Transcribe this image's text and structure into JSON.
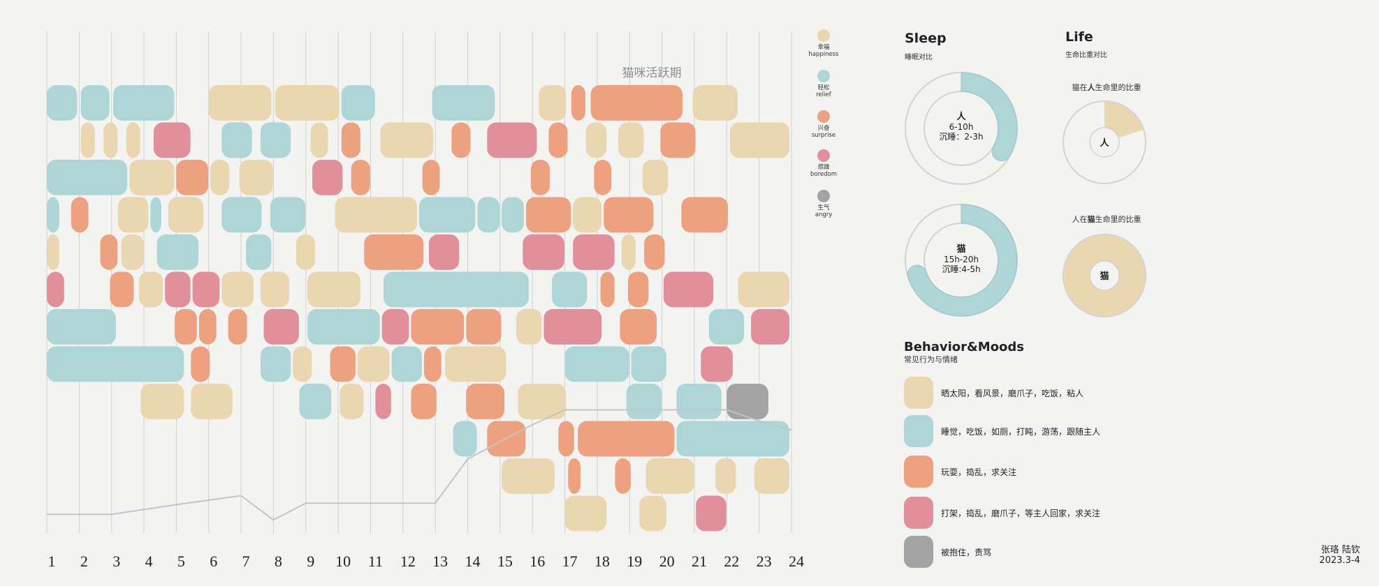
{
  "chart_data": {
    "type": "timeline-blocks",
    "title": "猫咪活跃期",
    "hours": [
      "1",
      "2",
      "3",
      "4",
      "5",
      "6",
      "7",
      "8",
      "9",
      "10",
      "11",
      "12",
      "13",
      "14",
      "15",
      "16",
      "17",
      "18",
      "19",
      "20",
      "21",
      "22",
      "23",
      "24"
    ],
    "activity_curve": [
      [
        1,
        0.5
      ],
      [
        2,
        0.5
      ],
      [
        3,
        0.5
      ],
      [
        4,
        0.63
      ],
      [
        5,
        0.76
      ],
      [
        6,
        0.88
      ],
      [
        7,
        1.0
      ],
      [
        8,
        0.35
      ],
      [
        9,
        0.8
      ],
      [
        10,
        0.8
      ],
      [
        11,
        0.8
      ],
      [
        12,
        0.8
      ],
      [
        13,
        0.8
      ],
      [
        14,
        1.98
      ],
      [
        15,
        2.45
      ],
      [
        16,
        2.9
      ],
      [
        17,
        3.3
      ],
      [
        18,
        3.3
      ],
      [
        19,
        3.3
      ],
      [
        20,
        3.3
      ],
      [
        21,
        3.3
      ],
      [
        22,
        3.3
      ],
      [
        23,
        3.0
      ],
      [
        24,
        2.76
      ]
    ],
    "colors": {
      "happiness": "#ead6b0",
      "relief": "#afd6d7",
      "surprise": "#eea181",
      "boredom": "#e18f9b",
      "angry": "#a3a3a3"
    },
    "blocks": [
      [
        1,
        2,
        11.05,
        12,
        "relief"
      ],
      [
        2.05,
        3,
        11.05,
        12,
        "relief"
      ],
      [
        3.05,
        5,
        11.05,
        12,
        "relief"
      ],
      [
        6,
        8,
        11.05,
        12,
        "happiness"
      ],
      [
        8.05,
        10.1,
        11.05,
        12,
        "happiness"
      ],
      [
        10.1,
        11.2,
        11.05,
        12,
        "relief"
      ],
      [
        12.9,
        14.9,
        11.05,
        12,
        "relief"
      ],
      [
        16.2,
        17.1,
        11.05,
        12,
        "happiness"
      ],
      [
        17.2,
        17.7,
        11.05,
        12,
        "surprise"
      ],
      [
        17.8,
        20.7,
        11.05,
        12,
        "surprise"
      ],
      [
        20.95,
        22.4,
        11.05,
        12,
        "happiness"
      ],
      [
        2.05,
        2.55,
        10.05,
        11,
        "happiness"
      ],
      [
        2.75,
        3.25,
        10.05,
        11,
        "happiness"
      ],
      [
        3.45,
        3.95,
        10.05,
        11,
        "happiness"
      ],
      [
        4.3,
        5.5,
        10.05,
        11,
        "boredom"
      ],
      [
        6.4,
        7.4,
        10.05,
        11,
        "relief"
      ],
      [
        7.6,
        8.6,
        10.05,
        11,
        "relief"
      ],
      [
        9.15,
        9.75,
        10.05,
        11,
        "happiness"
      ],
      [
        10.1,
        10.75,
        10.05,
        11,
        "surprise"
      ],
      [
        11.3,
        13,
        10.05,
        11,
        "happiness"
      ],
      [
        13.5,
        14.15,
        10.05,
        11,
        "surprise"
      ],
      [
        14.6,
        16.2,
        10.05,
        11,
        "boredom"
      ],
      [
        16.5,
        17.15,
        10.05,
        11,
        "surprise"
      ],
      [
        17.65,
        18.35,
        10.05,
        11,
        "happiness"
      ],
      [
        18.65,
        19.5,
        10.05,
        11,
        "happiness"
      ],
      [
        19.95,
        21.1,
        10.05,
        11,
        "surprise"
      ],
      [
        22.1,
        24,
        10.05,
        11,
        "happiness"
      ],
      [
        1,
        3.55,
        9.05,
        10,
        "relief"
      ],
      [
        3.55,
        5,
        9.05,
        10,
        "happiness"
      ],
      [
        5,
        6.05,
        9.05,
        10,
        "surprise"
      ],
      [
        6.05,
        6.7,
        9.05,
        10,
        "happiness"
      ],
      [
        6.95,
        8.05,
        9.05,
        10,
        "happiness"
      ],
      [
        9.2,
        10.2,
        9.05,
        10,
        "boredom"
      ],
      [
        10.4,
        11.05,
        9.05,
        10,
        "surprise"
      ],
      [
        12.6,
        13.2,
        9.05,
        10,
        "surprise"
      ],
      [
        15.95,
        16.6,
        9.05,
        10,
        "surprise"
      ],
      [
        17.9,
        18.5,
        9.05,
        10,
        "surprise"
      ],
      [
        19.4,
        20.25,
        9.05,
        10,
        "happiness"
      ],
      [
        1,
        1.45,
        8.05,
        9,
        "relief"
      ],
      [
        1.75,
        2.35,
        8.05,
        9,
        "surprise"
      ],
      [
        3.2,
        4.2,
        8.05,
        9,
        "happiness"
      ],
      [
        4.2,
        4.6,
        8.05,
        9,
        "relief"
      ],
      [
        4.75,
        5.9,
        8.05,
        9,
        "happiness"
      ],
      [
        6.4,
        7.7,
        8.05,
        9,
        "relief"
      ],
      [
        7.9,
        9.05,
        8.05,
        9,
        "relief"
      ],
      [
        9.9,
        12.5,
        8.05,
        9,
        "happiness"
      ],
      [
        12.5,
        14.3,
        8.05,
        9,
        "relief"
      ],
      [
        14.3,
        15.05,
        8.05,
        9,
        "relief"
      ],
      [
        15.05,
        15.8,
        8.05,
        9,
        "relief"
      ],
      [
        15.8,
        17.25,
        8.05,
        9,
        "surprise"
      ],
      [
        17.25,
        18.2,
        8.05,
        9,
        "happiness"
      ],
      [
        18.2,
        19.8,
        8.05,
        9,
        "surprise"
      ],
      [
        20.6,
        22.1,
        8.05,
        9,
        "surprise"
      ],
      [
        1,
        1.45,
        7.05,
        8,
        "happiness"
      ],
      [
        2.65,
        3.25,
        7.05,
        8,
        "surprise"
      ],
      [
        3.3,
        4.05,
        7.05,
        8,
        "happiness"
      ],
      [
        4.4,
        5.75,
        7.05,
        8,
        "relief"
      ],
      [
        7.15,
        8,
        7.05,
        8,
        "relief"
      ],
      [
        8.7,
        9.35,
        7.05,
        8,
        "happiness"
      ],
      [
        10.8,
        12.7,
        7.05,
        8,
        "surprise"
      ],
      [
        12.8,
        13.8,
        7.05,
        8,
        "boredom"
      ],
      [
        15.7,
        17.05,
        7.05,
        8,
        "boredom"
      ],
      [
        17.25,
        18.6,
        7.05,
        8,
        "boredom"
      ],
      [
        18.75,
        19.25,
        7.05,
        8,
        "happiness"
      ],
      [
        19.45,
        20.15,
        7.05,
        8,
        "surprise"
      ],
      [
        1,
        1.6,
        6.05,
        7,
        "boredom"
      ],
      [
        2.95,
        3.75,
        6.05,
        7,
        "surprise"
      ],
      [
        3.85,
        4.65,
        6.05,
        7,
        "happiness"
      ],
      [
        4.65,
        5.5,
        6.05,
        7,
        "boredom"
      ],
      [
        5.5,
        6.4,
        6.05,
        7,
        "boredom"
      ],
      [
        6.4,
        7.45,
        6.05,
        7,
        "happiness"
      ],
      [
        7.6,
        8.55,
        6.05,
        7,
        "happiness"
      ],
      [
        9.05,
        10.75,
        6.05,
        7,
        "happiness"
      ],
      [
        11.4,
        15.95,
        6.05,
        7,
        "relief"
      ],
      [
        16.6,
        17.75,
        6.05,
        7,
        "relief"
      ],
      [
        18.1,
        18.6,
        6.05,
        7,
        "surprise"
      ],
      [
        18.95,
        19.65,
        6.05,
        7,
        "surprise"
      ],
      [
        20.05,
        21.65,
        6.05,
        7,
        "boredom"
      ],
      [
        22.35,
        24,
        6.05,
        7,
        "happiness"
      ],
      [
        1,
        3.2,
        5.05,
        6,
        "relief"
      ],
      [
        4.95,
        5.7,
        5.05,
        6,
        "surprise"
      ],
      [
        5.7,
        6.3,
        5.05,
        6,
        "surprise"
      ],
      [
        6.6,
        7.25,
        5.05,
        6,
        "surprise"
      ],
      [
        7.7,
        8.85,
        5.05,
        6,
        "boredom"
      ],
      [
        9.05,
        11.35,
        5.05,
        6,
        "relief"
      ],
      [
        11.35,
        12.25,
        5.05,
        6,
        "boredom"
      ],
      [
        12.25,
        13.95,
        5.05,
        6,
        "surprise"
      ],
      [
        13.95,
        15.1,
        5.05,
        6,
        "surprise"
      ],
      [
        15.5,
        16.35,
        5.05,
        6,
        "happiness"
      ],
      [
        16.35,
        18.2,
        5.05,
        6,
        "boredom"
      ],
      [
        18.7,
        19.9,
        5.05,
        6,
        "surprise"
      ],
      [
        21.45,
        22.6,
        5.05,
        6,
        "relief"
      ],
      [
        22.75,
        24,
        5.05,
        6,
        "boredom"
      ],
      [
        1,
        5.3,
        4.05,
        5,
        "relief"
      ],
      [
        5.45,
        6.1,
        4.05,
        5,
        "surprise"
      ],
      [
        7.6,
        8.6,
        4.05,
        5,
        "relief"
      ],
      [
        8.6,
        9.25,
        4.05,
        5,
        "happiness"
      ],
      [
        9.75,
        10.6,
        4.05,
        5,
        "surprise"
      ],
      [
        10.6,
        11.65,
        4.05,
        5,
        "happiness"
      ],
      [
        11.65,
        12.65,
        4.05,
        5,
        "relief"
      ],
      [
        12.65,
        13.25,
        4.05,
        5,
        "surprise"
      ],
      [
        13.3,
        15.25,
        4.05,
        5,
        "happiness"
      ],
      [
        17,
        19.05,
        4.05,
        5,
        "relief"
      ],
      [
        19.05,
        20.2,
        4.05,
        5,
        "relief"
      ],
      [
        21.2,
        22.25,
        4.05,
        5,
        "boredom"
      ],
      [
        3.9,
        5.3,
        3.05,
        4,
        "happiness"
      ],
      [
        5.45,
        6.8,
        3.05,
        4,
        "happiness"
      ],
      [
        8.8,
        9.85,
        3.05,
        4,
        "relief"
      ],
      [
        10.05,
        10.85,
        3.05,
        4,
        "happiness"
      ],
      [
        11.15,
        11.7,
        3.05,
        4,
        "boredom"
      ],
      [
        12.25,
        13.1,
        3.05,
        4,
        "surprise"
      ],
      [
        13.95,
        15.2,
        3.05,
        4,
        "surprise"
      ],
      [
        15.55,
        17.1,
        3.05,
        4,
        "happiness"
      ],
      [
        18.9,
        20.05,
        3.05,
        4,
        "relief"
      ],
      [
        20.45,
        21.9,
        3.05,
        4,
        "relief"
      ],
      [
        22,
        23.35,
        3.05,
        4,
        "angry"
      ],
      [
        13.55,
        14.35,
        2.05,
        3,
        "relief"
      ],
      [
        14.6,
        15.85,
        2.05,
        3,
        "surprise"
      ],
      [
        16.8,
        17.35,
        2.05,
        3,
        "surprise"
      ],
      [
        17.4,
        20.45,
        2.05,
        3,
        "surprise"
      ],
      [
        20.45,
        24,
        2.05,
        3,
        "relief"
      ],
      [
        15.05,
        16.75,
        1.05,
        2,
        "happiness"
      ],
      [
        17.1,
        17.55,
        1.05,
        2,
        "surprise"
      ],
      [
        18.55,
        19.1,
        1.05,
        2,
        "surprise"
      ],
      [
        19.5,
        21.05,
        1.05,
        2,
        "happiness"
      ],
      [
        21.65,
        22.35,
        1.05,
        2,
        "happiness"
      ],
      [
        22.85,
        24,
        1.05,
        2,
        "happiness"
      ],
      [
        17,
        18.35,
        0.05,
        1,
        "happiness"
      ],
      [
        19.3,
        20.2,
        0.05,
        1,
        "happiness"
      ],
      [
        21.05,
        22.05,
        0.05,
        1,
        "boredom"
      ]
    ]
  },
  "legend": [
    {
      "key": "happiness",
      "cn": "幸福",
      "en": "happiness",
      "color": "#ead6b0"
    },
    {
      "key": "relief",
      "cn": "轻松",
      "en": "relief",
      "color": "#afd6d7"
    },
    {
      "key": "surprise",
      "cn": "兴奋",
      "en": "surprise",
      "color": "#eea181"
    },
    {
      "key": "boredom",
      "cn": "烦躁",
      "en": "boredom",
      "color": "#e18f9b"
    },
    {
      "key": "angry",
      "cn": "生气",
      "en": "angry",
      "color": "#a3a3a3"
    }
  ],
  "sleep": {
    "title": "Sleep",
    "subtitle": "睡眠对比",
    "human": {
      "name": "人",
      "line1": "6-10h",
      "line2": "沉睡：2-3h",
      "fraction": 0.333,
      "color": "#afd6d7"
    },
    "cat": {
      "name": "猫",
      "line1": "15h-20h",
      "line2": "沉睡:4-5h",
      "fraction": 0.7,
      "color": "#afd6d7"
    }
  },
  "life": {
    "title": "Life",
    "subtitle": "生命比重对比",
    "cat_in_human": {
      "caption_prefix": "猫在",
      "caption_bold": "人",
      "caption_suffix": "生命里的比重",
      "center": "人",
      "fraction": 0.2,
      "color": "#ead6b0"
    },
    "human_in_cat": {
      "caption_prefix": "人在",
      "caption_bold": "猫",
      "caption_suffix": "生命里的比重",
      "center": "猫",
      "fraction": 1.0,
      "color": "#ead6b0"
    }
  },
  "behavior": {
    "title": "Behavior&Moods",
    "subtitle": "常见行为与情绪",
    "items": [
      {
        "color": "#ead6b0",
        "text": "晒太阳，看风景，磨爪子，吃饭，粘人"
      },
      {
        "color": "#afd6d7",
        "text": "睡觉，吃饭，如厕，打盹，游荡，跟随主人"
      },
      {
        "color": "#eea181",
        "text": "玩耍，捣乱，求关注"
      },
      {
        "color": "#e18f9b",
        "text": "打架，捣乱，磨爪子，等主人回家，求关注"
      },
      {
        "color": "#a3a3a3",
        "text": "被抱住，责骂"
      }
    ]
  },
  "credit": {
    "authors": "张珞  陆钦",
    "date": "2023.3-4"
  }
}
